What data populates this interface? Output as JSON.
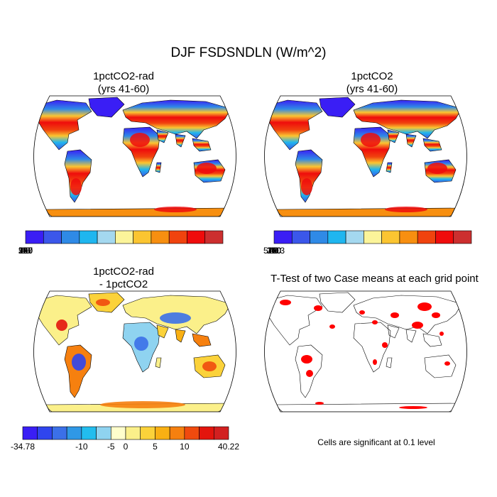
{
  "title": "DJF FSDSNDLN (W/m^2)",
  "panels": {
    "tl": {
      "title": "1pctCO2-rad\n(yrs 41-60)"
    },
    "tr": {
      "title": "1pctCO2\n(yrs 41-60)"
    },
    "bl": {
      "title": "1pctCO2-rad\n- 1pctCO2"
    },
    "br": {
      "title": "T-Test of two Case means at each grid point"
    }
  },
  "colorbars": {
    "abs": {
      "colors": [
        "#3a1ef5",
        "#3b57ea",
        "#2f8ae6",
        "#1fb6ef",
        "#a4d8ef",
        "#fbf49a",
        "#fbc531",
        "#f78f10",
        "#f0430e",
        "#ef0c0c",
        "#cc2f2f"
      ],
      "labels_left": [
        "0",
        "40",
        "80",
        "120",
        "160",
        "200",
        "240",
        "280",
        "320",
        "360",
        "587"
      ],
      "labels_right": [
        "0",
        "40",
        "80",
        "120",
        "160",
        "200",
        "240",
        "280",
        "320",
        "",
        "578.3"
      ]
    },
    "diff": {
      "colors": [
        "#3a1ef5",
        "#2f45ee",
        "#3b70e8",
        "#2f98e6",
        "#22bdee",
        "#8fd3f0",
        "#ffffcc",
        "#fbf08a",
        "#fbd23a",
        "#f9b013",
        "#f6800f",
        "#f04a0e",
        "#e3150d",
        "#d22020"
      ],
      "labels": [
        "-34.78",
        "-10",
        "-5",
        "0",
        "5",
        "10",
        "40.22"
      ]
    }
  },
  "note": "Cells are significant at 0.1 level"
}
